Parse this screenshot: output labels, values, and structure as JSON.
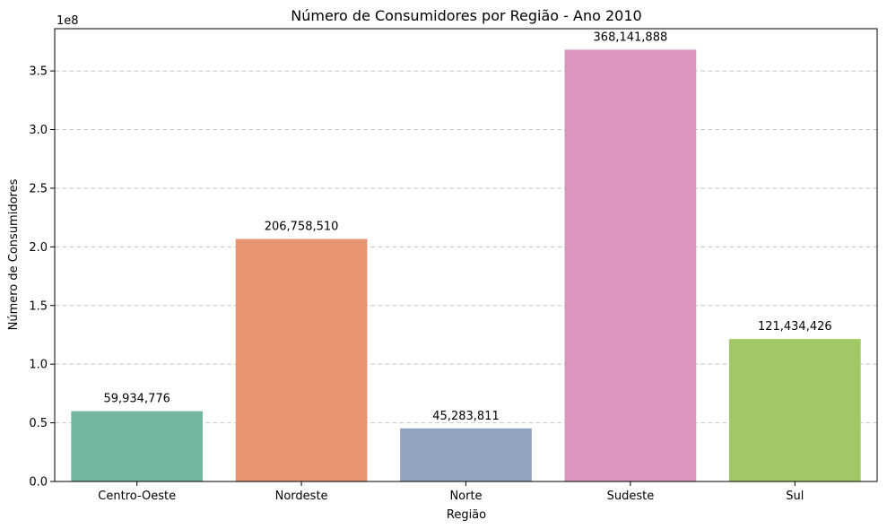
{
  "chart_data": {
    "type": "bar",
    "title": "Número de Consumidores por Região - Ano 2010",
    "xlabel": "Região",
    "ylabel": "Número de Consumidores",
    "y_offset_label": "1e8",
    "categories": [
      "Centro-Oeste",
      "Nordeste",
      "Norte",
      "Sudeste",
      "Sul"
    ],
    "values": [
      59934776,
      206758510,
      45283811,
      368141888,
      121434426
    ],
    "value_labels": [
      "59,934,776",
      "206,758,510",
      "45,283,811",
      "368,141,888",
      "121,434,426"
    ],
    "colors": [
      "#73b6a1",
      "#e89574",
      "#93a4c2",
      "#db95bf",
      "#a2c765"
    ],
    "ylim": [
      0,
      386000000
    ],
    "y_ticks": [
      0,
      50000000,
      100000000,
      150000000,
      200000000,
      250000000,
      300000000,
      350000000
    ],
    "y_tick_labels": [
      "0.0",
      "0.5",
      "1.0",
      "1.5",
      "2.0",
      "2.5",
      "3.0",
      "3.5"
    ],
    "grid": "y-dashed"
  }
}
